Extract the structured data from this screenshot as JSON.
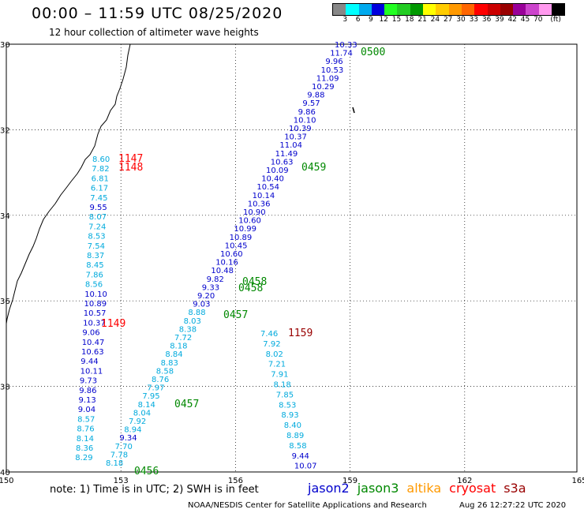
{
  "header": {
    "title": "00:00 – 11:59 UTC 08/25/2020",
    "subtitle": "12 hour collection of altimeter wave heights"
  },
  "colorbar": {
    "colors": [
      "#888888",
      "#00ffff",
      "#00aaee",
      "#0000dd",
      "#22ff22",
      "#22cc22",
      "#009900",
      "#ffff00",
      "#ffcc00",
      "#ff9900",
      "#ff6600",
      "#ff0000",
      "#cc0000",
      "#990000",
      "#990099",
      "#cc44cc",
      "#ff99ee",
      "#000000"
    ],
    "labels": [
      "3",
      "6",
      "9",
      "12",
      "15",
      "18",
      "21",
      "24",
      "27",
      "30",
      "33",
      "36",
      "39",
      "42",
      "45",
      "70",
      "(ft)"
    ]
  },
  "axes": {
    "lat_labels": [
      "30",
      "32",
      "34",
      "36",
      "38",
      "40"
    ],
    "lon_labels": [
      "150",
      "153",
      "156",
      "159",
      "162",
      "165"
    ]
  },
  "colors": {
    "jason2": "#0000cc",
    "jason3": "#008800",
    "altika": "#ff9900",
    "cryosat": "#ff0000",
    "s3a": "#990000",
    "light": "#00aadd"
  },
  "time_labels": [
    {
      "text": "1147",
      "sat": "cryosat"
    },
    {
      "text": "1148",
      "sat": "cryosat"
    },
    {
      "text": "1149",
      "sat": "cryosat"
    },
    {
      "text": "1159",
      "sat": "s3a"
    },
    {
      "text": "0500",
      "sat": "jason3"
    },
    {
      "text": "0459",
      "sat": "jason3"
    },
    {
      "text": "0458",
      "sat": "jason3"
    },
    {
      "text": "0458",
      "sat": "jason3"
    },
    {
      "text": "0457",
      "sat": "jason3"
    },
    {
      "text": "0457",
      "sat": "jason3"
    },
    {
      "text": "0456",
      "sat": "jason3"
    }
  ],
  "tracks": {
    "west": [
      "8.60",
      "7.82",
      "6.81",
      "6.17",
      "7.45",
      "9.55",
      "8.07",
      "7.24",
      "8.53",
      "7.54",
      "8.37",
      "8.45",
      "7.86",
      "8.56",
      "10.10",
      "10.89",
      "10.57",
      "10.37",
      "9.06",
      "10.47",
      "10.63",
      "9.44",
      "10.11",
      "9.73",
      "9.86",
      "9.13",
      "9.04",
      "8.57",
      "8.76",
      "8.14",
      "8.36",
      "8.29"
    ],
    "diagonal": [
      "10.33",
      "11.74",
      "9.96",
      "10.53",
      "11.09",
      "10.29",
      "9.88",
      "9.57",
      "9.86",
      "10.10",
      "10.39",
      "10.37",
      "11.04",
      "11.49",
      "10.63",
      "10.09",
      "10.40",
      "10.54",
      "10.14",
      "10.36",
      "10.90",
      "10.60",
      "10.99",
      "10.89",
      "10.45",
      "10.60",
      "10.16",
      "10.48",
      "9.82",
      "9.33",
      "9.20",
      "9.03",
      "8.88",
      "8.03",
      "8.38",
      "7.72",
      "8.18",
      "8.84",
      "8.83",
      "8.58",
      "8.76",
      "7.97",
      "7.95",
      "8.14",
      "8.04",
      "7.92",
      "8.94",
      "9.34",
      "7.70",
      "7.78",
      "8.18"
    ],
    "east": [
      "7.46",
      "7.92",
      "8.02",
      "7.21",
      "7.91",
      "8.18",
      "7.85",
      "8.53",
      "8.93",
      "8.40",
      "8.89",
      "8.58",
      "9.44",
      "10.07"
    ]
  },
  "legend": [
    {
      "text": "jason2",
      "sat": "jason2"
    },
    {
      "text": "jason3",
      "sat": "jason3"
    },
    {
      "text": "altika",
      "sat": "altika"
    },
    {
      "text": "cryosat",
      "sat": "cryosat"
    },
    {
      "text": "s3a",
      "sat": "s3a"
    }
  ],
  "footer": {
    "note": "note:  1) Time is in UTC;  2) SWH is in feet",
    "credit": "NOAA/NESDIS Center for Satellite Applications and Research",
    "date": "Aug 26 12:27:22 UTC 2020"
  }
}
